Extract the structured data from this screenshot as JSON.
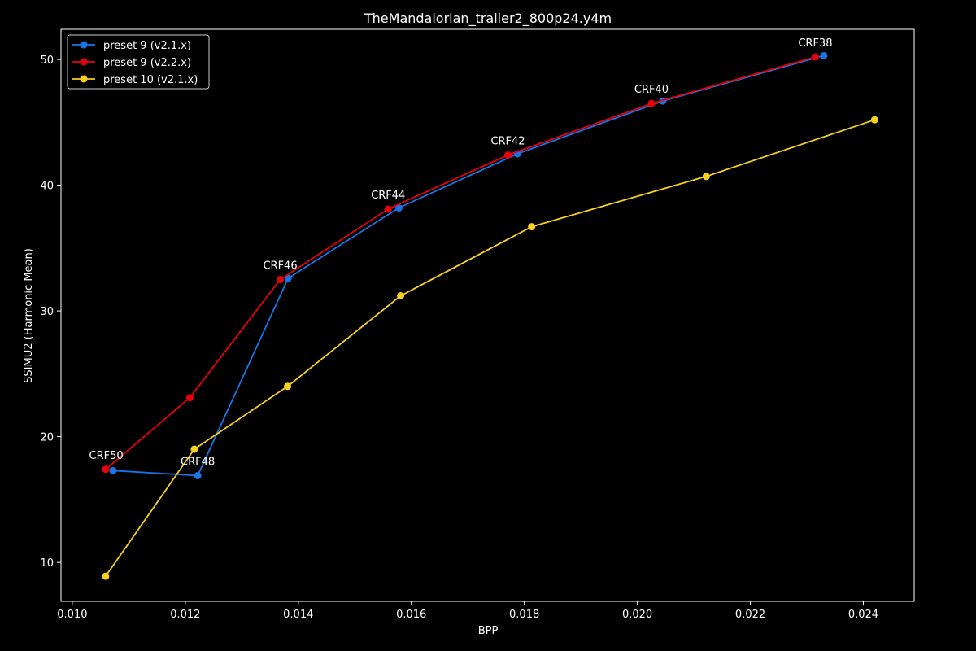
{
  "chart_data": {
    "type": "line",
    "title": "TheMandalorian_trailer2_800p24.y4m",
    "xlabel": "BPP",
    "ylabel": "SSIMU2 (Harmonic Mean)",
    "xlim": [
      0.0098,
      0.0249
    ],
    "ylim": [
      6.9,
      52.4
    ],
    "xticks": [
      0.01,
      0.012,
      0.014,
      0.016,
      0.018,
      0.02,
      0.022,
      0.024
    ],
    "xtick_labels": [
      "0.010",
      "0.012",
      "0.014",
      "0.016",
      "0.018",
      "0.020",
      "0.022",
      "0.024"
    ],
    "yticks": [
      10,
      20,
      30,
      40,
      50
    ],
    "ytick_labels": [
      "10",
      "20",
      "30",
      "40",
      "50"
    ],
    "grid": false,
    "legend_position": "top-left",
    "series": [
      {
        "name": "preset 9 (v2.1.x)",
        "color": "#1874e8",
        "x": [
          0.01072,
          0.01222,
          0.01382,
          0.01578,
          0.01788,
          0.02045,
          0.0233
        ],
        "y": [
          17.3,
          16.9,
          32.6,
          38.2,
          42.5,
          46.7,
          50.3
        ]
      },
      {
        "name": "preset 9 (v2.2.x)",
        "color": "#e8000b",
        "x": [
          0.01059,
          0.01208,
          0.01368,
          0.01559,
          0.01771,
          0.02025,
          0.02315
        ],
        "y": [
          17.4,
          23.1,
          32.5,
          38.1,
          42.4,
          46.5,
          50.2
        ]
      },
      {
        "name": "preset 10 (v2.1.x)",
        "color": "#f4d11f",
        "x": [
          0.01059,
          0.01216,
          0.01381,
          0.01581,
          0.01813,
          0.02122,
          0.0242
        ],
        "y": [
          8.9,
          19.0,
          24.0,
          31.2,
          36.7,
          40.7,
          45.2
        ]
      }
    ],
    "annotations": [
      {
        "text": "CRF50",
        "x": 0.0106,
        "y": 17.4
      },
      {
        "text": "CRF48",
        "x": 0.01222,
        "y": 16.9
      },
      {
        "text": "CRF46",
        "x": 0.01368,
        "y": 32.5
      },
      {
        "text": "CRF44",
        "x": 0.01559,
        "y": 38.1
      },
      {
        "text": "CRF42",
        "x": 0.01771,
        "y": 42.4
      },
      {
        "text": "CRF40",
        "x": 0.02025,
        "y": 46.5
      },
      {
        "text": "CRF38",
        "x": 0.02315,
        "y": 50.2
      }
    ]
  }
}
